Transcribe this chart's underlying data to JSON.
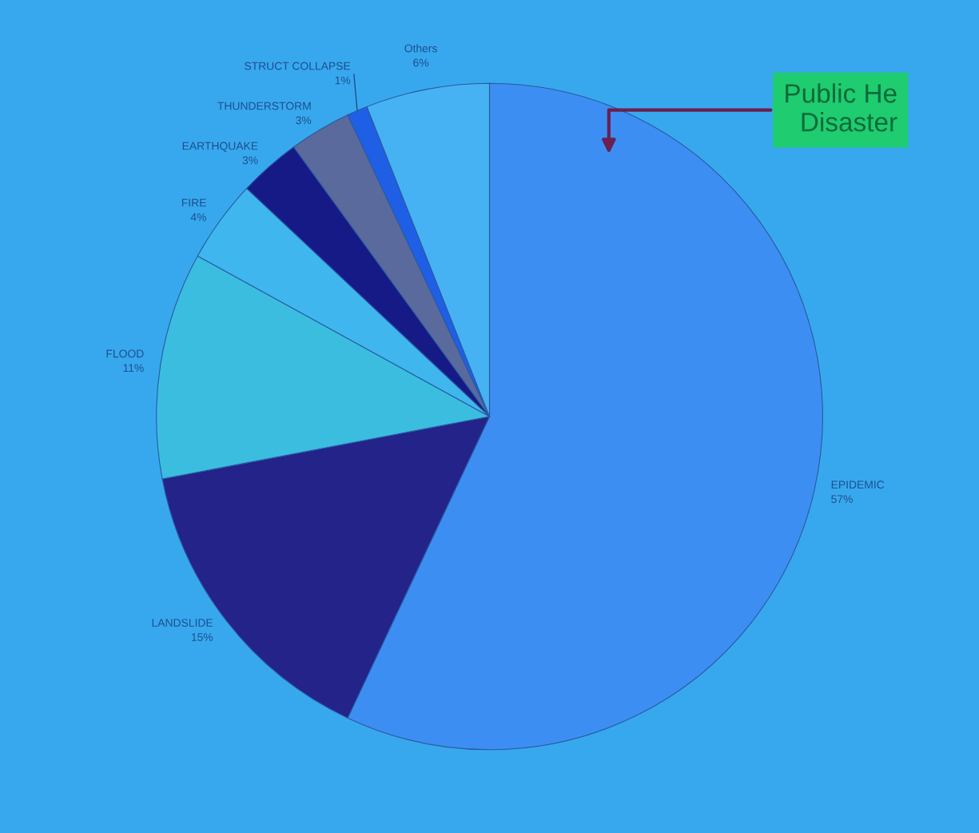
{
  "chart_data": {
    "type": "pie",
    "categories": [
      "EPIDEMIC",
      "LANDSLIDE",
      "FLOOD",
      "FIRE",
      "EARTHQUAKE",
      "THUNDERSTORM",
      "STRUCT COLLAPSE",
      "Others"
    ],
    "values": [
      57,
      15,
      11,
      4,
      3,
      3,
      1,
      6
    ],
    "value_labels": [
      "57%",
      "15%",
      "11%",
      "4%",
      "3%",
      "3%",
      "1%",
      "6%"
    ],
    "colors": [
      "#3d8ef2",
      "#23238a",
      "#3bbde0",
      "#3fb6ee",
      "#161a86",
      "#5a6a9c",
      "#1f5fe6",
      "#46b2f4"
    ],
    "annotations": [
      "Public He\nDisaster"
    ]
  }
}
